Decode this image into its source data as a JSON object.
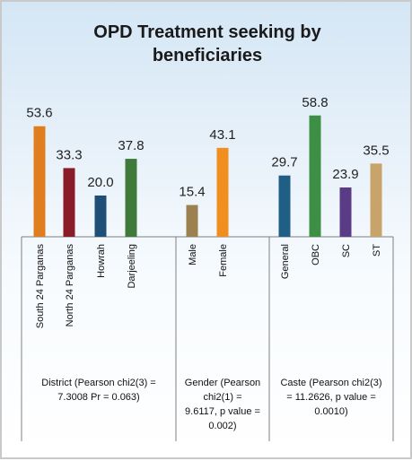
{
  "chart_data": {
    "type": "bar",
    "title": "OPD Treatment seeking by beneficiaries",
    "title_lines": [
      "OPD Treatment seeking by",
      "beneficiaries"
    ],
    "ylim": [
      0,
      70
    ],
    "grid": false,
    "legend": "none",
    "groups": [
      {
        "label_lines": [
          "District (Pearson chi2(3) =",
          "7.3008    Pr = 0.063)"
        ],
        "categories": [
          "South 24 Parganas",
          "North 24 Parganas",
          "Howrah",
          "Darjeeling"
        ],
        "values": [
          53.6,
          33.3,
          20.0,
          37.8
        ],
        "labels": [
          "53.6",
          "33.3",
          "20.0",
          "37.8"
        ],
        "colors": [
          "#e07d1e",
          "#8a1c2a",
          "#1f4e79",
          "#3f7a3a"
        ]
      },
      {
        "label_lines": [
          "Gender (Pearson",
          "chi2(1) =",
          "9.6117, p value =",
          "0.002)"
        ],
        "categories": [
          "Male",
          "Female"
        ],
        "values": [
          15.4,
          43.1
        ],
        "labels": [
          "15.4",
          "43.1"
        ],
        "colors": [
          "#9c8050",
          "#f08e20"
        ]
      },
      {
        "label_lines": [
          "Caste (Pearson chi2(3)",
          "= 11.2626, p value =",
          "0.0010)"
        ],
        "categories": [
          "General",
          "OBC",
          "SC",
          "ST"
        ],
        "values": [
          29.7,
          58.8,
          23.9,
          35.5
        ],
        "labels": [
          "29.7",
          "58.8",
          "23.9",
          "35.5"
        ],
        "colors": [
          "#1f5f86",
          "#3e8f46",
          "#5a3c86",
          "#c8a46a"
        ]
      }
    ]
  }
}
